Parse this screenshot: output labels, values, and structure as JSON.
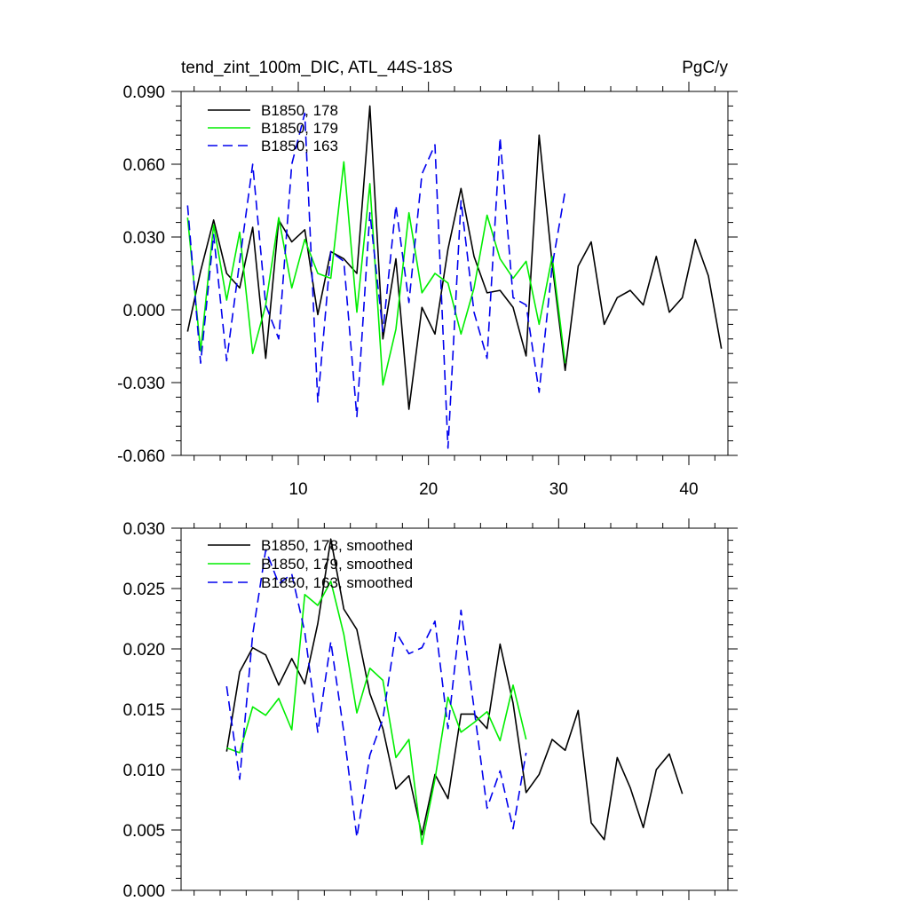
{
  "chart_data": [
    {
      "type": "line",
      "title": "tend_zint_100m_DIC, ATL_44S-18S",
      "units": "PgC/y",
      "xlabel": "",
      "ylabel": "",
      "xlim": [
        1,
        43
      ],
      "ylim": [
        -0.06,
        0.09
      ],
      "xticks": [
        10,
        20,
        30,
        40
      ],
      "yticks": [
        -0.06,
        -0.03,
        0.0,
        0.03,
        0.06,
        0.09
      ],
      "ytick_labels": [
        "-0.060",
        "-0.030",
        "0.000",
        "0.030",
        "0.060",
        "0.090"
      ],
      "legend_position": "top-left",
      "series": [
        {
          "name": "B1850, 178",
          "color": "#000000",
          "dash": "solid",
          "x": [
            1.5,
            2.5,
            3.5,
            4.5,
            5.5,
            6.5,
            7.5,
            8.5,
            9.5,
            10.5,
            11.5,
            12.5,
            13.5,
            14.5,
            15.5,
            16.5,
            17.5,
            18.5,
            19.5,
            20.5,
            21.5,
            22.5,
            23.5,
            24.5,
            25.5,
            26.5,
            27.5,
            28.5,
            29.5,
            30.5,
            31.5,
            32.5,
            33.5,
            34.5,
            35.5,
            36.5,
            37.5,
            38.5,
            39.5,
            40.5,
            41.5,
            42.5
          ],
          "values": [
            -0.009,
            0.016,
            0.037,
            0.015,
            0.009,
            0.034,
            -0.02,
            0.037,
            0.028,
            0.033,
            -0.002,
            0.024,
            0.021,
            0.015,
            0.084,
            -0.012,
            0.021,
            -0.041,
            0.001,
            -0.01,
            0.025,
            0.05,
            0.022,
            0.007,
            0.008,
            0.001,
            -0.019,
            0.072,
            0.019,
            -0.025,
            0.018,
            0.028,
            -0.006,
            0.005,
            0.008,
            0.002,
            0.022,
            -0.001,
            0.005,
            0.029,
            0.014,
            -0.016
          ]
        },
        {
          "name": "B1850, 179",
          "color": "#00ee00",
          "dash": "solid",
          "x": [
            1.5,
            2.5,
            3.5,
            4.5,
            5.5,
            6.5,
            7.5,
            8.5,
            9.5,
            10.5,
            11.5,
            12.5,
            13.5,
            14.5,
            15.5,
            16.5,
            17.5,
            18.5,
            19.5,
            20.5,
            21.5,
            22.5,
            23.5,
            24.5,
            25.5,
            26.5,
            27.5,
            28.5,
            29.5,
            30.5
          ],
          "values": [
            0.038,
            -0.017,
            0.035,
            0.004,
            0.032,
            -0.018,
            0.002,
            0.038,
            0.009,
            0.029,
            0.015,
            0.013,
            0.061,
            -0.001,
            0.052,
            -0.031,
            -0.008,
            0.04,
            0.007,
            0.015,
            0.011,
            -0.01,
            0.009,
            0.039,
            0.021,
            0.013,
            0.02,
            -0.006,
            0.022,
            -0.022
          ]
        },
        {
          "name": "B1850, 163",
          "color": "#0000ee",
          "dash": "dashed",
          "x": [
            1.5,
            2.5,
            3.5,
            4.5,
            5.5,
            6.5,
            7.5,
            8.5,
            9.5,
            10.5,
            11.5,
            12.5,
            13.5,
            14.5,
            15.5,
            16.5,
            17.5,
            18.5,
            19.5,
            20.5,
            21.5,
            22.5,
            23.5,
            24.5,
            25.5,
            26.5,
            27.5,
            28.5,
            29.5,
            30.5
          ],
          "values": [
            0.043,
            -0.022,
            0.031,
            -0.021,
            0.02,
            0.06,
            0.002,
            -0.012,
            0.06,
            0.081,
            -0.038,
            0.024,
            0.02,
            -0.044,
            0.04,
            -0.009,
            0.043,
            0.003,
            0.056,
            0.068,
            -0.057,
            0.045,
            -0.001,
            -0.02,
            0.071,
            0.005,
            0.002,
            -0.034,
            0.018,
            0.049
          ]
        }
      ]
    },
    {
      "type": "line",
      "title": "",
      "xlabel": "",
      "ylabel": "",
      "xlim": [
        1,
        43
      ],
      "ylim": [
        0.0,
        0.03
      ],
      "yticks": [
        0.0,
        0.005,
        0.01,
        0.015,
        0.02,
        0.025,
        0.03
      ],
      "ytick_labels": [
        "0.000",
        "0.005",
        "0.010",
        "0.015",
        "0.020",
        "0.025",
        "0.030"
      ],
      "legend_position": "top-left",
      "series": [
        {
          "name": "B1850, 178, smoothed",
          "color": "#000000",
          "dash": "solid",
          "x": [
            4.5,
            5.5,
            6.5,
            7.5,
            8.5,
            9.5,
            10.5,
            11.5,
            12.5,
            13.5,
            14.5,
            15.5,
            16.5,
            17.5,
            18.5,
            19.5,
            20.5,
            21.5,
            22.5,
            23.5,
            24.5,
            25.5,
            26.5,
            27.5,
            28.5,
            29.5,
            30.5,
            31.5,
            32.5,
            33.5,
            34.5,
            35.5,
            36.5,
            37.5,
            38.5,
            39.5
          ],
          "values": [
            0.0115,
            0.0181,
            0.0201,
            0.0195,
            0.017,
            0.0192,
            0.0171,
            0.0221,
            0.0291,
            0.0233,
            0.0216,
            0.0163,
            0.0134,
            0.0084,
            0.0095,
            0.0046,
            0.0096,
            0.0076,
            0.0146,
            0.0146,
            0.0134,
            0.0204,
            0.0155,
            0.0081,
            0.0096,
            0.0125,
            0.0116,
            0.0149,
            0.0056,
            0.0042,
            0.011,
            0.0085,
            0.0052,
            0.01,
            0.0113,
            0.008
          ]
        },
        {
          "name": "B1850, 179, smoothed",
          "color": "#00ee00",
          "dash": "solid",
          "x": [
            4.5,
            5.5,
            6.5,
            7.5,
            8.5,
            9.5,
            10.5,
            11.5,
            12.5,
            13.5,
            14.5,
            15.5,
            16.5,
            17.5,
            18.5,
            19.5,
            20.5,
            21.5,
            22.5,
            23.5,
            24.5,
            25.5,
            26.5,
            27.5
          ],
          "values": [
            0.0118,
            0.0114,
            0.0152,
            0.0145,
            0.0159,
            0.0133,
            0.0245,
            0.0236,
            0.0256,
            0.0212,
            0.0147,
            0.0184,
            0.0174,
            0.011,
            0.0125,
            0.0038,
            0.0092,
            0.016,
            0.0131,
            0.0139,
            0.0148,
            0.0124,
            0.017,
            0.0125
          ]
        },
        {
          "name": "B1850, 163, smoothed",
          "color": "#0000ee",
          "dash": "dashed",
          "x": [
            4.5,
            5.5,
            6.5,
            7.5,
            8.5,
            9.5,
            10.5,
            11.5,
            12.5,
            13.5,
            14.5,
            15.5,
            16.5,
            17.5,
            18.5,
            19.5,
            20.5,
            21.5,
            22.5,
            23.5,
            24.5,
            25.5,
            26.5,
            27.5
          ],
          "values": [
            0.0169,
            0.0092,
            0.0212,
            0.0282,
            0.0254,
            0.0262,
            0.0214,
            0.0131,
            0.0206,
            0.0131,
            0.0044,
            0.0112,
            0.0142,
            0.0214,
            0.0196,
            0.0201,
            0.0223,
            0.0134,
            0.0232,
            0.0151,
            0.0068,
            0.0099,
            0.0051,
            0.0114
          ]
        }
      ]
    }
  ]
}
